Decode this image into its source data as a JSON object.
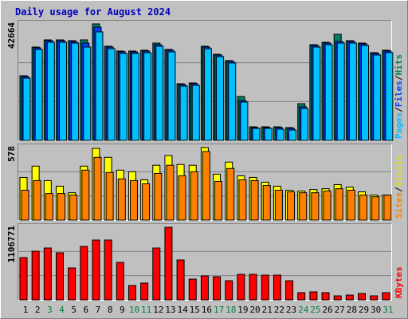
{
  "title": "Daily usage for August 2024",
  "legend_separator": "/",
  "chart_data": [
    {
      "type": "bar",
      "ylim": [
        0,
        42664
      ],
      "yticks": [
        42664
      ],
      "series": [
        {
          "name": "Hits",
          "color": "#008060",
          "values": [
            23670,
            34190,
            36820,
            36820,
            36530,
            36820,
            42664,
            34480,
            32730,
            32730,
            33020,
            35650,
            33310,
            20750,
            21040,
            34480,
            31560,
            29220,
            16070,
            4970,
            4970,
            4970,
            4680,
            13440,
            35070,
            35940,
            38870,
            36530,
            35650,
            32140,
            33020
          ]
        },
        {
          "name": "Files",
          "color": "#0040ff",
          "values": [
            23380,
            33900,
            36530,
            36530,
            36240,
            35650,
            41500,
            34190,
            32440,
            32440,
            32730,
            35060,
            33020,
            20460,
            20750,
            34190,
            31270,
            28930,
            14600,
            4680,
            4680,
            4680,
            4390,
            12300,
            34780,
            35650,
            36240,
            36240,
            35360,
            31850,
            32730
          ]
        },
        {
          "name": "Pages",
          "color": "#00c0ff",
          "values": [
            22800,
            33310,
            35940,
            35940,
            35650,
            34190,
            39750,
            33600,
            31850,
            31850,
            32140,
            34480,
            32440,
            19870,
            20170,
            33600,
            30680,
            28350,
            14030,
            4390,
            4390,
            4100,
            3800,
            11690,
            34190,
            35060,
            35650,
            35650,
            34780,
            31270,
            32140
          ]
        }
      ]
    },
    {
      "type": "bar",
      "ylim": [
        0,
        578
      ],
      "yticks": [
        578
      ],
      "series": [
        {
          "name": "Visits",
          "color": "#ffff00",
          "values": [
            340,
            430,
            315,
            270,
            218,
            430,
            571,
            500,
            398,
            385,
            321,
            437,
            514,
            443,
            437,
            578,
            366,
            462,
            353,
            340,
            302,
            270,
            238,
            231,
            244,
            250,
            283,
            263,
            225,
            199,
            199
          ]
        },
        {
          "name": "Sites",
          "color": "#ff8000",
          "values": [
            238,
            315,
            212,
            212,
            199,
            398,
            500,
            379,
            328,
            315,
            289,
            372,
            437,
            353,
            385,
            546,
            308,
            411,
            321,
            315,
            276,
            238,
            225,
            218,
            218,
            231,
            250,
            238,
            199,
            186,
            199
          ]
        }
      ]
    },
    {
      "type": "bar",
      "ylim": [
        0,
        1106771
      ],
      "yticks": [
        1106771
      ],
      "categories": [
        "1",
        "2",
        "3",
        "4",
        "5",
        "6",
        "7",
        "8",
        "9",
        "10",
        "11",
        "12",
        "13",
        "14",
        "15",
        "16",
        "17",
        "18",
        "19",
        "20",
        "21",
        "22",
        "23",
        "24",
        "25",
        "26",
        "27",
        "28",
        "29",
        "30",
        "31"
      ],
      "category_colors": [
        "#000000",
        "#000000",
        "#008040",
        "#008040",
        "#000000",
        "#000000",
        "#000000",
        "#000000",
        "#000000",
        "#008040",
        "#008040",
        "#000000",
        "#000000",
        "#000000",
        "#000000",
        "#000000",
        "#008040",
        "#008040",
        "#000000",
        "#000000",
        "#000000",
        "#000000",
        "#000000",
        "#008040",
        "#008040",
        "#000000",
        "#000000",
        "#000000",
        "#000000",
        "#000000",
        "#008040"
      ],
      "series": [
        {
          "name": "KBytes",
          "color": "#ff0000",
          "values": [
            644600,
            741900,
            790600,
            717600,
            486500,
            814900,
            912200,
            912200,
            571600,
            218900,
            255400,
            790600,
            1106771,
            608100,
            316200,
            364900,
            352700,
            291900,
            389200,
            389200,
            377000,
            377000,
            291900,
            109500,
            121600,
            109500,
            60800,
            73000,
            97300,
            60800,
            109500
          ]
        }
      ]
    }
  ]
}
